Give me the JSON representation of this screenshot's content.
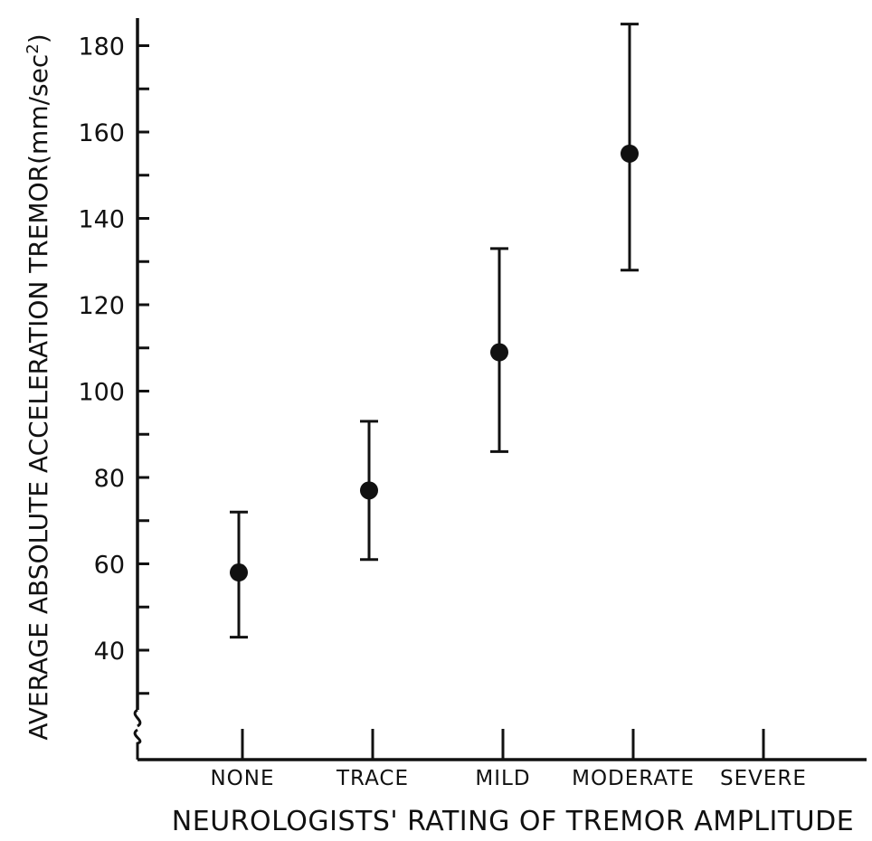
{
  "chart_data": {
    "type": "scatter",
    "title": "",
    "xlabel": "NEUROLOGISTS' RATING OF TREMOR AMPLITUDE",
    "ylabel_main": "AVERAGE ABSOLUTE ACCELERATION TREMOR",
    "ylabel_unit_pre": "(mm/sec",
    "ylabel_unit_sup": "2",
    "ylabel_unit_post": ")",
    "categories": [
      "NONE",
      "TRACE",
      "MILD",
      "MODERATE",
      "SEVERE"
    ],
    "ylim": [
      20,
      185
    ],
    "y_axis_break": true,
    "y_ticks_labeled": [
      40,
      60,
      80,
      100,
      120,
      140,
      160,
      180
    ],
    "y_ticks_minor": [
      30,
      50,
      70,
      90,
      110,
      130,
      150,
      170
    ],
    "series": [
      {
        "points": [
          {
            "category": "NONE",
            "y": 58,
            "y_low": 43,
            "y_high": 72
          },
          {
            "category": "TRACE",
            "y": 77,
            "y_low": 61,
            "y_high": 93
          },
          {
            "category": "MILD",
            "y": 109,
            "y_low": 86,
            "y_high": 133
          },
          {
            "category": "MODERATE",
            "y": 155,
            "y_low": 128,
            "y_high": 185
          }
        ]
      }
    ],
    "grid": false,
    "marker_color": "#111111"
  }
}
